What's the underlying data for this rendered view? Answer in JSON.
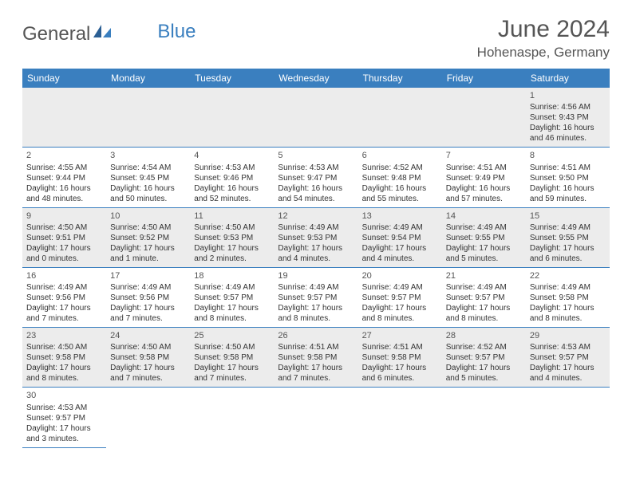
{
  "logo": {
    "general": "General",
    "blue": "Blue"
  },
  "title": "June 2024",
  "location": "Hohenaspe, Germany",
  "colors": {
    "header_bg": "#3a7fbf",
    "header_text": "#ffffff",
    "row_alt_bg": "#ececec",
    "row_bg": "#ffffff",
    "border": "#3a7fbf",
    "text": "#333333",
    "title_text": "#555555"
  },
  "fonts": {
    "title_size": 30,
    "location_size": 17,
    "weekday_size": 12,
    "daynum_size": 11,
    "body_size": 10
  },
  "weekdays": [
    "Sunday",
    "Monday",
    "Tuesday",
    "Wednesday",
    "Thursday",
    "Friday",
    "Saturday"
  ],
  "weeks": [
    [
      null,
      null,
      null,
      null,
      null,
      null,
      {
        "d": "1",
        "sr": "Sunrise: 4:56 AM",
        "ss": "Sunset: 9:43 PM",
        "dl1": "Daylight: 16 hours",
        "dl2": "and 46 minutes."
      }
    ],
    [
      {
        "d": "2",
        "sr": "Sunrise: 4:55 AM",
        "ss": "Sunset: 9:44 PM",
        "dl1": "Daylight: 16 hours",
        "dl2": "and 48 minutes."
      },
      {
        "d": "3",
        "sr": "Sunrise: 4:54 AM",
        "ss": "Sunset: 9:45 PM",
        "dl1": "Daylight: 16 hours",
        "dl2": "and 50 minutes."
      },
      {
        "d": "4",
        "sr": "Sunrise: 4:53 AM",
        "ss": "Sunset: 9:46 PM",
        "dl1": "Daylight: 16 hours",
        "dl2": "and 52 minutes."
      },
      {
        "d": "5",
        "sr": "Sunrise: 4:53 AM",
        "ss": "Sunset: 9:47 PM",
        "dl1": "Daylight: 16 hours",
        "dl2": "and 54 minutes."
      },
      {
        "d": "6",
        "sr": "Sunrise: 4:52 AM",
        "ss": "Sunset: 9:48 PM",
        "dl1": "Daylight: 16 hours",
        "dl2": "and 55 minutes."
      },
      {
        "d": "7",
        "sr": "Sunrise: 4:51 AM",
        "ss": "Sunset: 9:49 PM",
        "dl1": "Daylight: 16 hours",
        "dl2": "and 57 minutes."
      },
      {
        "d": "8",
        "sr": "Sunrise: 4:51 AM",
        "ss": "Sunset: 9:50 PM",
        "dl1": "Daylight: 16 hours",
        "dl2": "and 59 minutes."
      }
    ],
    [
      {
        "d": "9",
        "sr": "Sunrise: 4:50 AM",
        "ss": "Sunset: 9:51 PM",
        "dl1": "Daylight: 17 hours",
        "dl2": "and 0 minutes."
      },
      {
        "d": "10",
        "sr": "Sunrise: 4:50 AM",
        "ss": "Sunset: 9:52 PM",
        "dl1": "Daylight: 17 hours",
        "dl2": "and 1 minute."
      },
      {
        "d": "11",
        "sr": "Sunrise: 4:50 AM",
        "ss": "Sunset: 9:53 PM",
        "dl1": "Daylight: 17 hours",
        "dl2": "and 2 minutes."
      },
      {
        "d": "12",
        "sr": "Sunrise: 4:49 AM",
        "ss": "Sunset: 9:53 PM",
        "dl1": "Daylight: 17 hours",
        "dl2": "and 4 minutes."
      },
      {
        "d": "13",
        "sr": "Sunrise: 4:49 AM",
        "ss": "Sunset: 9:54 PM",
        "dl1": "Daylight: 17 hours",
        "dl2": "and 4 minutes."
      },
      {
        "d": "14",
        "sr": "Sunrise: 4:49 AM",
        "ss": "Sunset: 9:55 PM",
        "dl1": "Daylight: 17 hours",
        "dl2": "and 5 minutes."
      },
      {
        "d": "15",
        "sr": "Sunrise: 4:49 AM",
        "ss": "Sunset: 9:55 PM",
        "dl1": "Daylight: 17 hours",
        "dl2": "and 6 minutes."
      }
    ],
    [
      {
        "d": "16",
        "sr": "Sunrise: 4:49 AM",
        "ss": "Sunset: 9:56 PM",
        "dl1": "Daylight: 17 hours",
        "dl2": "and 7 minutes."
      },
      {
        "d": "17",
        "sr": "Sunrise: 4:49 AM",
        "ss": "Sunset: 9:56 PM",
        "dl1": "Daylight: 17 hours",
        "dl2": "and 7 minutes."
      },
      {
        "d": "18",
        "sr": "Sunrise: 4:49 AM",
        "ss": "Sunset: 9:57 PM",
        "dl1": "Daylight: 17 hours",
        "dl2": "and 8 minutes."
      },
      {
        "d": "19",
        "sr": "Sunrise: 4:49 AM",
        "ss": "Sunset: 9:57 PM",
        "dl1": "Daylight: 17 hours",
        "dl2": "and 8 minutes."
      },
      {
        "d": "20",
        "sr": "Sunrise: 4:49 AM",
        "ss": "Sunset: 9:57 PM",
        "dl1": "Daylight: 17 hours",
        "dl2": "and 8 minutes."
      },
      {
        "d": "21",
        "sr": "Sunrise: 4:49 AM",
        "ss": "Sunset: 9:57 PM",
        "dl1": "Daylight: 17 hours",
        "dl2": "and 8 minutes."
      },
      {
        "d": "22",
        "sr": "Sunrise: 4:49 AM",
        "ss": "Sunset: 9:58 PM",
        "dl1": "Daylight: 17 hours",
        "dl2": "and 8 minutes."
      }
    ],
    [
      {
        "d": "23",
        "sr": "Sunrise: 4:50 AM",
        "ss": "Sunset: 9:58 PM",
        "dl1": "Daylight: 17 hours",
        "dl2": "and 8 minutes."
      },
      {
        "d": "24",
        "sr": "Sunrise: 4:50 AM",
        "ss": "Sunset: 9:58 PM",
        "dl1": "Daylight: 17 hours",
        "dl2": "and 7 minutes."
      },
      {
        "d": "25",
        "sr": "Sunrise: 4:50 AM",
        "ss": "Sunset: 9:58 PM",
        "dl1": "Daylight: 17 hours",
        "dl2": "and 7 minutes."
      },
      {
        "d": "26",
        "sr": "Sunrise: 4:51 AM",
        "ss": "Sunset: 9:58 PM",
        "dl1": "Daylight: 17 hours",
        "dl2": "and 7 minutes."
      },
      {
        "d": "27",
        "sr": "Sunrise: 4:51 AM",
        "ss": "Sunset: 9:58 PM",
        "dl1": "Daylight: 17 hours",
        "dl2": "and 6 minutes."
      },
      {
        "d": "28",
        "sr": "Sunrise: 4:52 AM",
        "ss": "Sunset: 9:57 PM",
        "dl1": "Daylight: 17 hours",
        "dl2": "and 5 minutes."
      },
      {
        "d": "29",
        "sr": "Sunrise: 4:53 AM",
        "ss": "Sunset: 9:57 PM",
        "dl1": "Daylight: 17 hours",
        "dl2": "and 4 minutes."
      }
    ],
    [
      {
        "d": "30",
        "sr": "Sunrise: 4:53 AM",
        "ss": "Sunset: 9:57 PM",
        "dl1": "Daylight: 17 hours",
        "dl2": "and 3 minutes."
      },
      null,
      null,
      null,
      null,
      null,
      null
    ]
  ]
}
